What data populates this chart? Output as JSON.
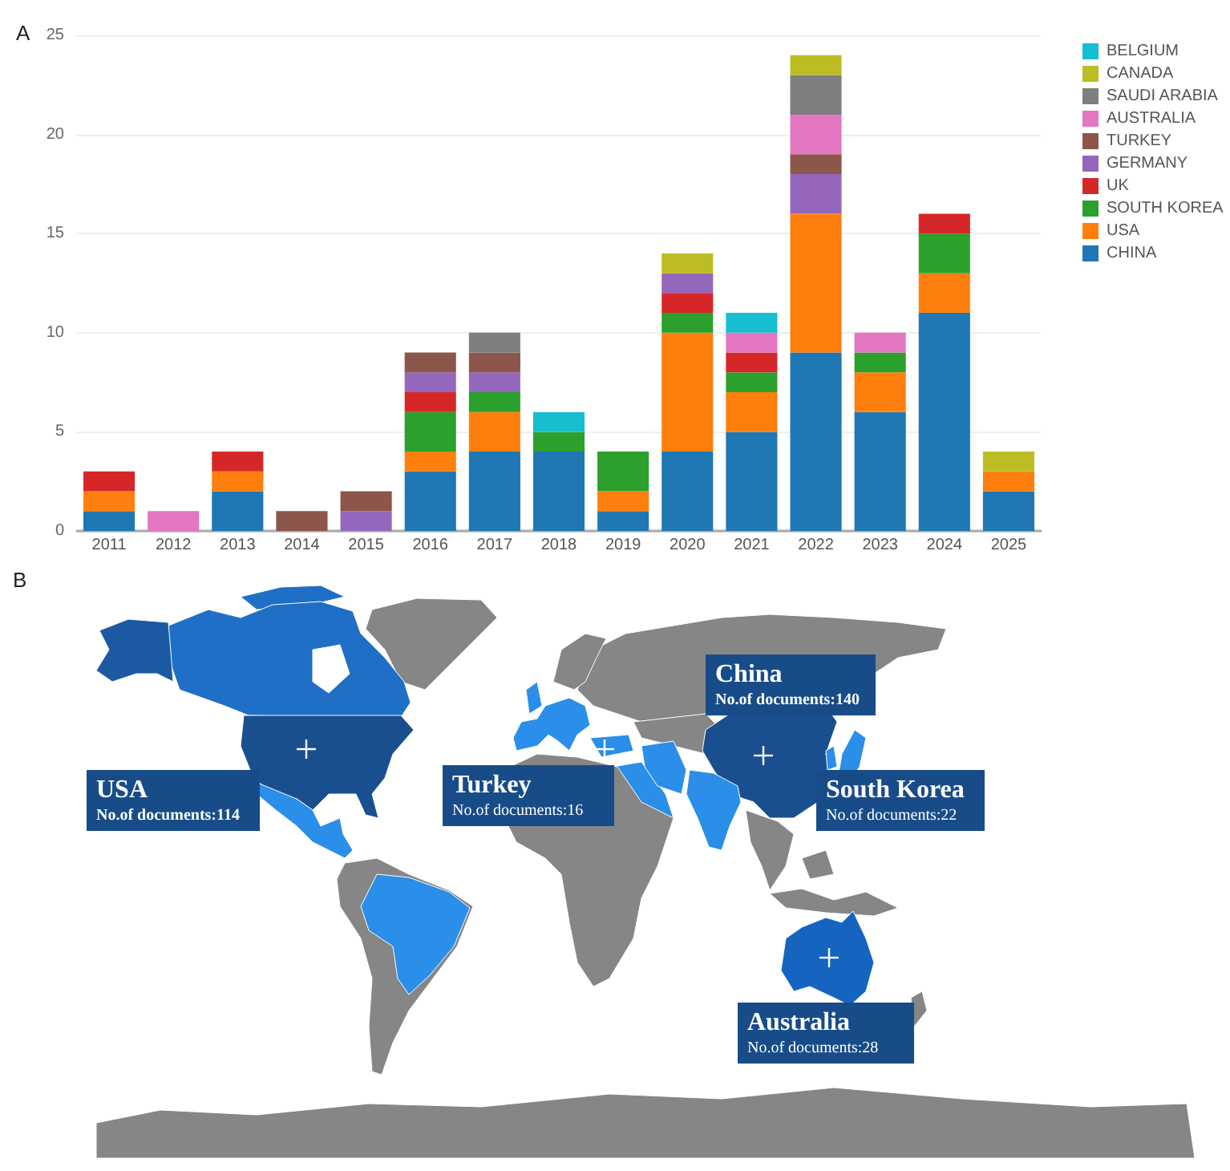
{
  "chart_data": [
    {
      "type": "bar",
      "title": "A",
      "categories": [
        "2011",
        "2012",
        "2013",
        "2014",
        "2015",
        "2016",
        "2017",
        "2018",
        "2019",
        "2020",
        "2021",
        "2022",
        "2023",
        "2024",
        "2025"
      ],
      "stacked": true,
      "series": [
        {
          "name": "CHINA",
          "color": "#1f77b4",
          "values": [
            1,
            null,
            2,
            null,
            null,
            3,
            4,
            4,
            1,
            4,
            5,
            9,
            6,
            11,
            2
          ]
        },
        {
          "name": "USA",
          "color": "#ff7f0e",
          "values": [
            1,
            null,
            1,
            null,
            null,
            1,
            2,
            null,
            1,
            6,
            2,
            7,
            2,
            2,
            1
          ]
        },
        {
          "name": "SOUTH KOREA",
          "color": "#2ca02c",
          "values": [
            null,
            null,
            null,
            null,
            null,
            2,
            1,
            1,
            2,
            1,
            1,
            null,
            1,
            2,
            null
          ]
        },
        {
          "name": "UK",
          "color": "#d62728",
          "values": [
            1,
            null,
            1,
            null,
            null,
            1,
            null,
            null,
            null,
            1,
            1,
            null,
            null,
            1,
            null
          ]
        },
        {
          "name": "GERMANY",
          "color": "#9467bd",
          "values": [
            null,
            null,
            null,
            null,
            1,
            1,
            1,
            null,
            null,
            1,
            null,
            2,
            null,
            null,
            null
          ]
        },
        {
          "name": "TURKEY",
          "color": "#8c564b",
          "values": [
            null,
            null,
            null,
            1,
            1,
            1,
            1,
            null,
            null,
            null,
            null,
            1,
            null,
            null,
            null
          ]
        },
        {
          "name": "AUSTRALIA",
          "color": "#e377c2",
          "values": [
            null,
            1,
            null,
            null,
            null,
            null,
            null,
            null,
            null,
            null,
            1,
            2,
            1,
            null,
            null
          ]
        },
        {
          "name": "SAUDI ARABIA",
          "color": "#7f7f7f",
          "values": [
            null,
            null,
            null,
            null,
            null,
            null,
            1,
            null,
            null,
            null,
            null,
            2,
            null,
            null,
            null
          ]
        },
        {
          "name": "CANADA",
          "color": "#bcbd22",
          "values": [
            null,
            null,
            null,
            null,
            null,
            null,
            null,
            null,
            null,
            1,
            null,
            1,
            null,
            null,
            1
          ]
        },
        {
          "name": "BELGIUM",
          "color": "#17becf",
          "values": [
            null,
            null,
            null,
            null,
            null,
            null,
            null,
            1,
            null,
            null,
            1,
            null,
            null,
            null,
            null
          ]
        }
      ],
      "ylim": [
        0,
        25
      ],
      "yticks": [
        0,
        5,
        10,
        15,
        20,
        25
      ],
      "grid": "y",
      "legend": "top right"
    },
    {
      "type": "other",
      "title": "B",
      "ylabel": "No.of documents:",
      "categories": [
        "China",
        "USA",
        "Turkey",
        "South Korea",
        "Australia"
      ],
      "values": [
        140,
        114,
        16,
        22,
        28
      ],
      "data_labels": true
    }
  ]
}
